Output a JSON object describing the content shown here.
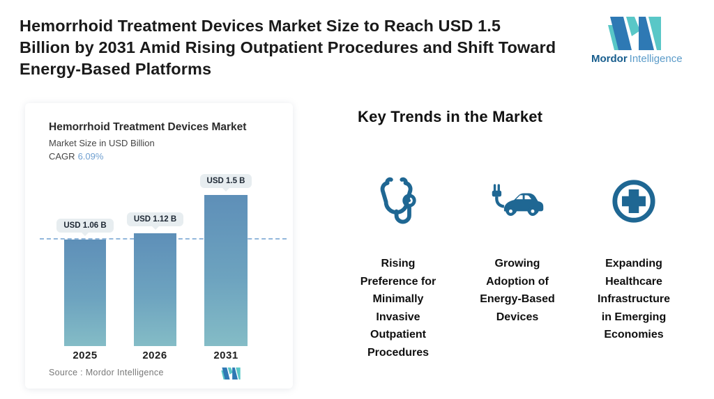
{
  "page": {
    "title": "Hemorrhoid Treatment Devices Market Size to Reach USD 1.5\nBillion by 2031 Amid Rising Outpatient Procedures and Shift Toward\nEnergy-Based Platforms"
  },
  "brand": {
    "name_primary": "Mordor",
    "name_secondary": "Intelligence",
    "logo_icon": "mordor-mn-monogram",
    "colors": {
      "dark_blue": "#2e79b4",
      "teal": "#59c7c7"
    }
  },
  "chart_data": {
    "type": "bar",
    "title": "Hemorrhoid Treatment Devices Market",
    "subtitle": "Market Size in USD Billion",
    "cagr_label": "CAGR",
    "cagr_value": "6.09%",
    "categories": [
      "2025",
      "2026",
      "2031"
    ],
    "values": [
      1.06,
      1.12,
      1.5
    ],
    "bar_labels": [
      "USD 1.06 B",
      "USD 1.12 B",
      "USD 1.5 B"
    ],
    "ylim": [
      0,
      1.55
    ],
    "baseline_marker_value": 1.06,
    "grid": false,
    "legend": "none",
    "bar_gradient_top": "#5e8fb8",
    "bar_gradient_bottom": "#84bcc6",
    "dashed_line_color": "#92b7db",
    "badge_bg": "#e7edf0",
    "source_label": "Source :  Mordor Intelligence"
  },
  "trends": {
    "heading": "Key Trends in the Market",
    "icon_color": "#1f6793",
    "items": [
      {
        "icon": "stethoscope-icon",
        "label": "Rising\nPreference for\nMinimally\nInvasive\nOutpatient\nProcedures"
      },
      {
        "icon": "electric-car-icon",
        "label": "Growing\nAdoption of\nEnergy-Based\nDevices"
      },
      {
        "icon": "medical-cross-icon",
        "label": "Expanding\nHealthcare\nInfrastructure\nin Emerging\nEconomies"
      }
    ]
  }
}
